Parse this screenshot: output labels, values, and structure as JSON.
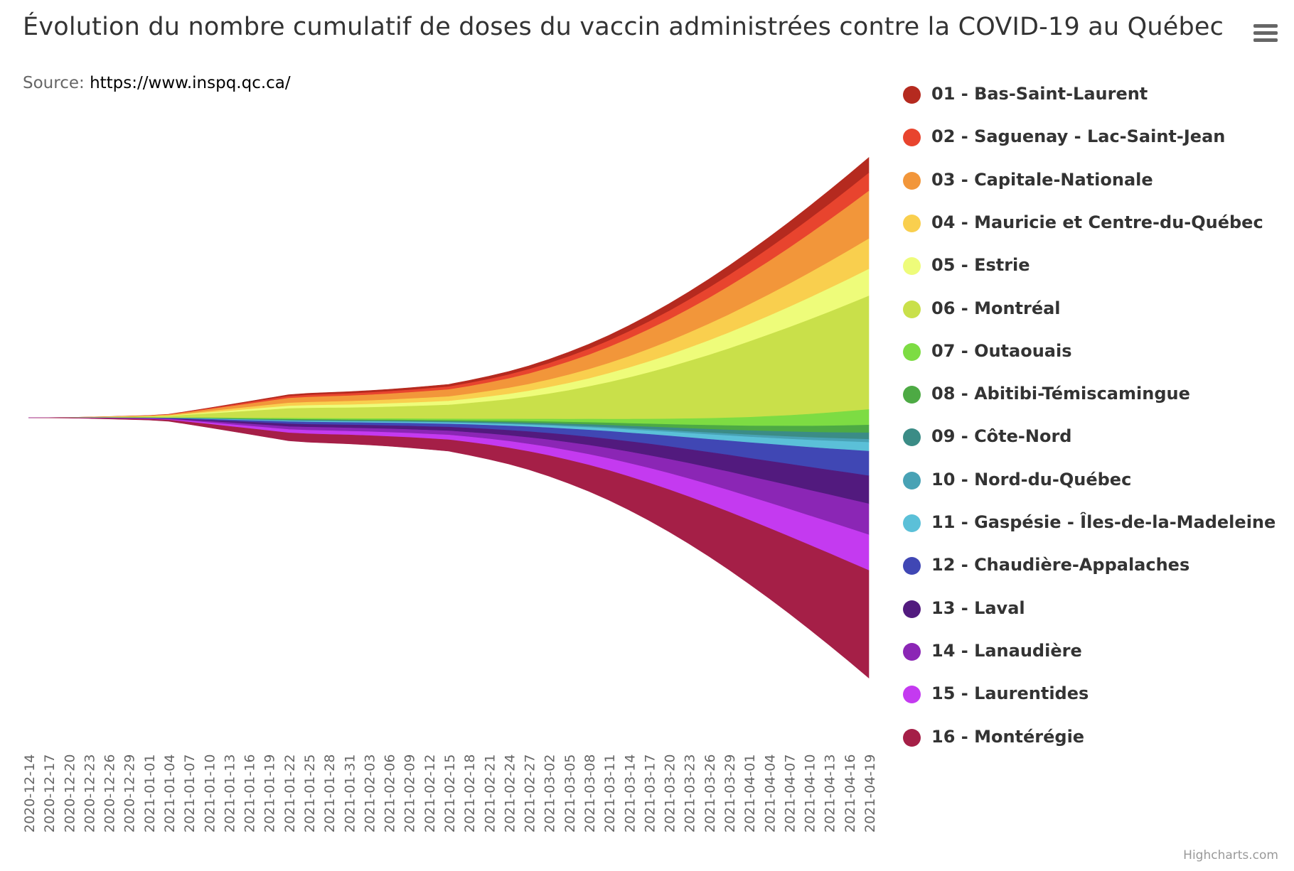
{
  "title": "Évolution du nombre cumulatif de doses du vaccin administrées contre la COVID-19 au Québec",
  "subtitle": {
    "prefix": "Source: ",
    "link": "https://www.inspq.qc.ca/"
  },
  "menu_icon": "hamburger-menu-icon",
  "credits": "Highcharts.com",
  "chart_data": {
    "type": "area",
    "layout": "streamgraph",
    "grid": false,
    "legend_position": "right",
    "x": [
      "2020-12-14",
      "2020-12-17",
      "2020-12-20",
      "2020-12-23",
      "2020-12-26",
      "2020-12-29",
      "2021-01-01",
      "2021-01-04",
      "2021-01-07",
      "2021-01-10",
      "2021-01-13",
      "2021-01-16",
      "2021-01-19",
      "2021-01-22",
      "2021-01-25",
      "2021-01-28",
      "2021-01-31",
      "2021-02-03",
      "2021-02-06",
      "2021-02-09",
      "2021-02-12",
      "2021-02-15",
      "2021-02-18",
      "2021-02-21",
      "2021-02-24",
      "2021-02-27",
      "2021-03-02",
      "2021-03-05",
      "2021-03-08",
      "2021-03-11",
      "2021-03-14",
      "2021-03-17",
      "2021-03-20",
      "2021-03-23",
      "2021-03-26",
      "2021-03-29",
      "2021-04-01",
      "2021-04-04",
      "2021-04-07",
      "2021-04-10",
      "2021-04-13",
      "2021-04-16",
      "2021-04-19"
    ],
    "series": [
      {
        "name": "01 - Bas-Saint-Laurent",
        "color": "#b52a1f",
        "values": [
          0,
          0.01,
          0.03,
          0.06,
          0.1,
          0.15,
          0.2,
          0.3,
          0.6,
          0.9,
          1.2,
          1.5,
          1.8,
          2.2,
          2.4,
          2.5,
          2.6,
          2.7,
          2.8,
          2.9,
          3.1,
          3.3,
          3.6,
          4.0,
          4.4,
          4.9,
          5.4,
          6.0,
          6.6,
          7.3,
          8.1,
          8.9,
          9.8,
          10.7,
          11.7,
          12.7,
          13.8,
          14.9,
          16.0,
          17.2,
          18.4,
          19.6,
          20.8
        ]
      },
      {
        "name": "02 - Saguenay - Lac-Saint-Jean",
        "color": "#e8442e",
        "values": [
          0,
          0.01,
          0.03,
          0.07,
          0.12,
          0.18,
          0.25,
          0.4,
          0.7,
          1.0,
          1.4,
          1.8,
          2.2,
          2.6,
          2.8,
          2.9,
          3.0,
          3.1,
          3.3,
          3.4,
          3.6,
          3.8,
          4.2,
          4.6,
          5.1,
          5.7,
          6.3,
          7.0,
          7.7,
          8.5,
          9.4,
          10.3,
          11.3,
          12.4,
          13.6,
          14.8,
          16.0,
          17.3,
          18.6,
          19.9,
          21.2,
          22.6,
          24.0
        ]
      },
      {
        "name": "03 - Capitale-Nationale",
        "color": "#f2963a",
        "values": [
          0,
          0.03,
          0.08,
          0.2,
          0.3,
          0.45,
          0.6,
          0.9,
          1.7,
          2.6,
          3.5,
          4.5,
          5.4,
          6.3,
          6.7,
          7.0,
          7.2,
          7.5,
          7.9,
          8.3,
          8.8,
          9.3,
          10.3,
          11.4,
          12.6,
          14.0,
          15.6,
          17.4,
          19.3,
          21.4,
          23.7,
          26.2,
          28.8,
          31.6,
          34.6,
          37.7,
          41.0,
          44.4,
          48.0,
          51.8,
          55.6,
          59.6,
          63.6
        ]
      },
      {
        "name": "04 - Mauricie et Centre-du-Québec",
        "color": "#f9cf4e",
        "values": [
          0,
          0.02,
          0.06,
          0.12,
          0.2,
          0.3,
          0.4,
          0.6,
          1.1,
          1.6,
          2.2,
          2.8,
          3.4,
          4.0,
          4.3,
          4.5,
          4.7,
          4.9,
          5.1,
          5.4,
          5.7,
          6.0,
          6.6,
          7.3,
          8.1,
          9.0,
          10.0,
          11.1,
          12.3,
          13.6,
          15.1,
          16.7,
          18.4,
          20.2,
          22.1,
          24.1,
          26.2,
          28.4,
          30.7,
          33.1,
          35.5,
          38.0,
          40.6
        ]
      },
      {
        "name": "05 - Estrie",
        "color": "#eefc7a",
        "values": [
          0,
          0.02,
          0.05,
          0.1,
          0.16,
          0.24,
          0.3,
          0.5,
          0.9,
          1.4,
          1.9,
          2.4,
          2.9,
          3.4,
          3.6,
          3.8,
          4.0,
          4.2,
          4.4,
          4.6,
          4.9,
          5.2,
          5.7,
          6.3,
          7.0,
          7.8,
          8.7,
          9.7,
          10.7,
          11.9,
          13.2,
          14.6,
          16.1,
          17.7,
          19.4,
          21.2,
          23.1,
          25.0,
          27.0,
          29.1,
          31.3,
          33.5,
          35.8
        ]
      },
      {
        "name": "06 - Montréal",
        "color": "#c9e04a",
        "values": [
          0,
          0.05,
          0.15,
          0.4,
          0.7,
          1.0,
          1.3,
          2.0,
          3.7,
          5.5,
          7.3,
          9.2,
          11.1,
          12.9,
          13.6,
          14.0,
          14.4,
          15.0,
          15.7,
          16.6,
          17.6,
          18.6,
          20.9,
          23.4,
          26.2,
          29.6,
          33.6,
          38.2,
          43.3,
          49.0,
          55.2,
          61.9,
          69.0,
          76.5,
          84.3,
          92.3,
          100.6,
          108.9,
          117.3,
          125.8,
          134.3,
          142.8,
          151.4
        ]
      },
      {
        "name": "07 - Outaouais",
        "color": "#7ddc43",
        "values": [
          0,
          0.01,
          0.02,
          0.05,
          0.08,
          0.12,
          0.15,
          0.2,
          0.4,
          0.6,
          0.8,
          1.0,
          1.2,
          1.4,
          1.5,
          1.5,
          1.6,
          1.6,
          1.7,
          1.8,
          1.9,
          2.0,
          2.2,
          2.5,
          2.8,
          3.1,
          3.5,
          4.0,
          4.5,
          5.1,
          5.8,
          6.5,
          7.3,
          8.2,
          9.2,
          10.3,
          11.5,
          12.8,
          14.2,
          15.7,
          17.3,
          19.0,
          20.8
        ]
      },
      {
        "name": "08 - Abitibi-Témiscamingue",
        "color": "#4daa44",
        "values": [
          0,
          0.01,
          0.02,
          0.03,
          0.05,
          0.07,
          0.09,
          0.13,
          0.25,
          0.38,
          0.5,
          0.6,
          0.75,
          0.9,
          0.95,
          1.0,
          1.0,
          1.05,
          1.1,
          1.15,
          1.2,
          1.3,
          1.45,
          1.6,
          1.8,
          2.0,
          2.25,
          2.5,
          2.8,
          3.1,
          3.5,
          3.9,
          4.3,
          4.8,
          5.3,
          5.8,
          6.3,
          6.9,
          7.5,
          8.2,
          8.9,
          9.6,
          10.3
        ]
      },
      {
        "name": "09 - Côte-Nord",
        "color": "#3b8c86",
        "values": [
          0,
          0.01,
          0.02,
          0.03,
          0.05,
          0.07,
          0.09,
          0.12,
          0.22,
          0.33,
          0.45,
          0.55,
          0.65,
          0.8,
          0.85,
          0.9,
          0.9,
          0.95,
          1.0,
          1.05,
          1.1,
          1.2,
          1.3,
          1.45,
          1.6,
          1.8,
          2.0,
          2.25,
          2.5,
          2.8,
          3.1,
          3.4,
          3.8,
          4.2,
          4.6,
          5.0,
          5.5,
          6.0,
          6.5,
          7.0,
          7.5,
          8.1,
          8.7
        ]
      },
      {
        "name": "10 - Nord-du-Québec",
        "color": "#48a2b5",
        "values": [
          0,
          0.005,
          0.01,
          0.02,
          0.03,
          0.04,
          0.05,
          0.07,
          0.13,
          0.2,
          0.26,
          0.32,
          0.38,
          0.45,
          0.48,
          0.5,
          0.5,
          0.52,
          0.55,
          0.58,
          0.6,
          0.65,
          0.72,
          0.8,
          0.9,
          1.0,
          1.1,
          1.25,
          1.4,
          1.55,
          1.7,
          1.9,
          2.1,
          2.3,
          2.5,
          2.7,
          2.9,
          3.1,
          3.3,
          3.5,
          3.7,
          3.9,
          4.1
        ]
      },
      {
        "name": "11 - Gaspésie - Îles-de-la-Madeleine",
        "color": "#5bc0d8",
        "values": [
          0,
          0.01,
          0.02,
          0.04,
          0.06,
          0.09,
          0.12,
          0.17,
          0.32,
          0.48,
          0.64,
          0.8,
          0.96,
          1.12,
          1.18,
          1.22,
          1.25,
          1.3,
          1.36,
          1.42,
          1.5,
          1.58,
          1.75,
          1.95,
          2.15,
          2.4,
          2.7,
          3.0,
          3.35,
          3.75,
          4.2,
          4.65,
          5.15,
          5.7,
          6.25,
          6.85,
          7.5,
          8.15,
          8.85,
          9.55,
          10.3,
          11.05,
          11.8
        ]
      },
      {
        "name": "12 - Chaudière-Appalaches",
        "color": "#4047b4",
        "values": [
          0,
          0.02,
          0.05,
          0.1,
          0.16,
          0.23,
          0.3,
          0.45,
          0.85,
          1.25,
          1.7,
          2.1,
          2.5,
          2.95,
          3.1,
          3.2,
          3.3,
          3.45,
          3.6,
          3.8,
          4.0,
          4.2,
          4.7,
          5.2,
          5.8,
          6.5,
          7.3,
          8.2,
          9.2,
          10.3,
          11.5,
          12.8,
          14.2,
          15.7,
          17.3,
          19.0,
          20.8,
          22.6,
          24.5,
          26.5,
          28.5,
          30.6,
          32.7
        ]
      },
      {
        "name": "13 - Laval",
        "color": "#521a7e",
        "values": [
          0,
          0.02,
          0.06,
          0.12,
          0.2,
          0.28,
          0.36,
          0.55,
          1.05,
          1.55,
          2.05,
          2.55,
          3.05,
          3.55,
          3.75,
          3.85,
          3.95,
          4.1,
          4.3,
          4.5,
          4.75,
          5.0,
          5.6,
          6.25,
          7.0,
          7.85,
          8.8,
          9.9,
          11.1,
          12.4,
          13.8,
          15.3,
          16.9,
          18.6,
          20.4,
          22.3,
          24.3,
          26.4,
          28.5,
          30.7,
          32.9,
          35.2,
          37.5
        ]
      },
      {
        "name": "14 - Lanaudière",
        "color": "#8b26b5",
        "values": [
          0,
          0.02,
          0.06,
          0.13,
          0.21,
          0.3,
          0.4,
          0.6,
          1.15,
          1.7,
          2.25,
          2.8,
          3.35,
          3.9,
          4.1,
          4.25,
          4.35,
          4.5,
          4.7,
          4.95,
          5.2,
          5.5,
          6.15,
          6.85,
          7.65,
          8.6,
          9.7,
          10.9,
          12.2,
          13.6,
          15.2,
          16.9,
          18.7,
          20.6,
          22.6,
          24.7,
          26.9,
          29.2,
          31.5,
          33.9,
          36.3,
          38.8,
          41.3
        ]
      },
      {
        "name": "15 - Laurentides",
        "color": "#c43af0",
        "values": [
          0,
          0.03,
          0.07,
          0.15,
          0.24,
          0.34,
          0.45,
          0.7,
          1.3,
          1.9,
          2.55,
          3.2,
          3.85,
          4.5,
          4.75,
          4.9,
          5.0,
          5.2,
          5.45,
          5.7,
          6.0,
          6.35,
          7.1,
          7.95,
          8.9,
          10.0,
          11.3,
          12.7,
          14.2,
          15.9,
          17.7,
          19.7,
          21.8,
          24.0,
          26.3,
          28.7,
          31.2,
          33.8,
          36.4,
          39.1,
          41.9,
          44.7,
          47.5
        ]
      },
      {
        "name": "16 - Montérégie",
        "color": "#a51f47",
        "values": [
          0,
          0.06,
          0.15,
          0.35,
          0.58,
          0.82,
          1.05,
          1.6,
          3.0,
          4.5,
          6.0,
          7.5,
          9.0,
          10.5,
          11.1,
          11.5,
          11.8,
          12.3,
          12.9,
          13.6,
          14.4,
          15.2,
          17.0,
          19.1,
          21.4,
          24.2,
          27.4,
          31.0,
          35.0,
          39.5,
          44.5,
          50.0,
          56.0,
          62.5,
          69.5,
          77.0,
          85.0,
          93.5,
          102.5,
          112.0,
          122.0,
          132.5,
          143.5
        ]
      }
    ]
  }
}
